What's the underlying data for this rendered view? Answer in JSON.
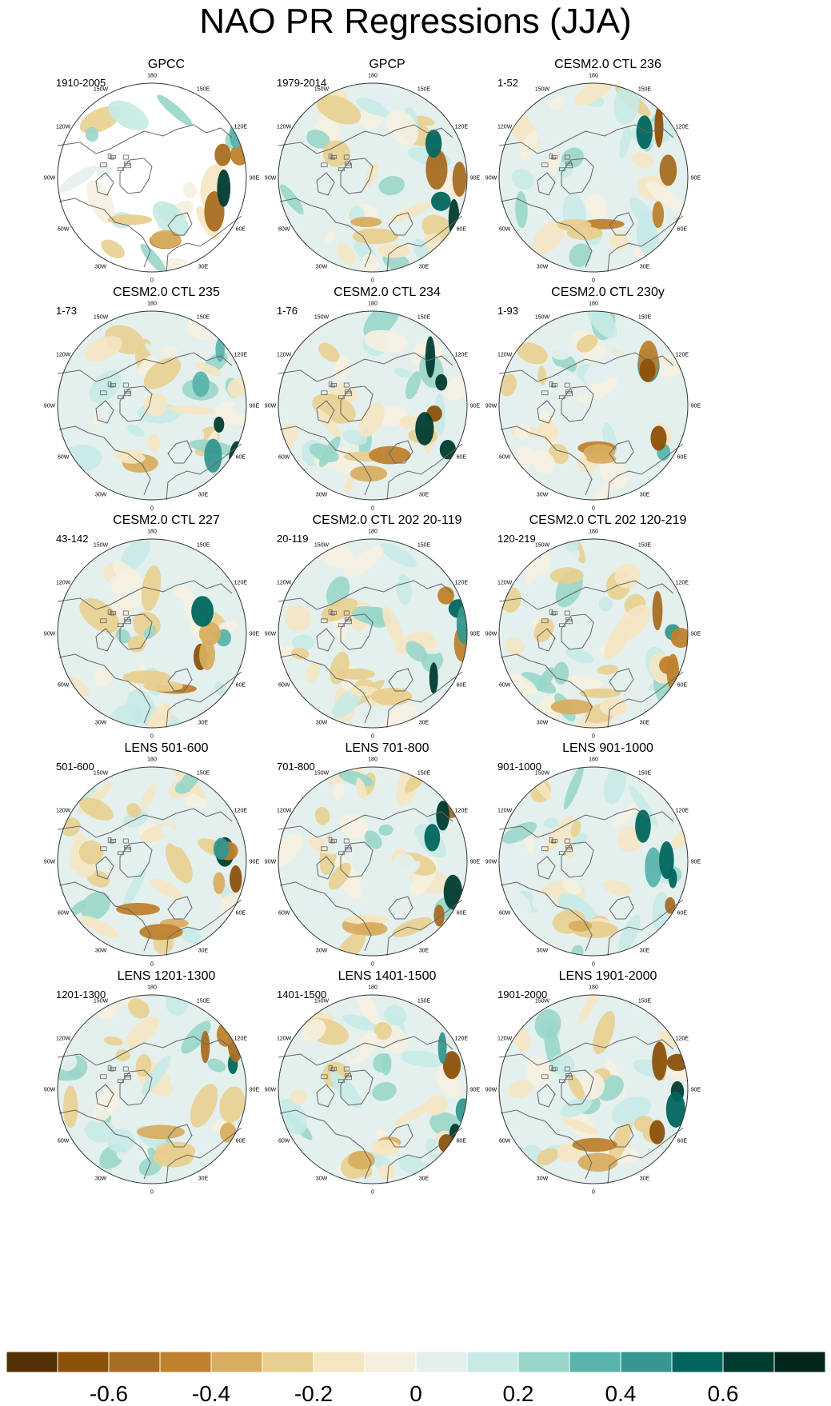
{
  "chart_data": {
    "type": "map",
    "title": "NAO PR Regressions (JJA)",
    "projection": "north-polar-stereographic",
    "lon_labels": [
      "180",
      "150E",
      "120E",
      "90E",
      "60E",
      "30E",
      "0",
      "30W",
      "60W",
      "90W",
      "120W",
      "150W"
    ],
    "panels": [
      {
        "title": "GPCC",
        "period": "1910-2005",
        "land_only": true
      },
      {
        "title": "GPCP",
        "period": "1979-2014"
      },
      {
        "title": "CESM2.0 CTL 236",
        "period": "1-52"
      },
      {
        "title": "CESM2.0 CTL 235",
        "period": "1-73"
      },
      {
        "title": "CESM2.0 CTL 234",
        "period": "1-76"
      },
      {
        "title": "CESM2.0 CTL 230y",
        "period": "1-93"
      },
      {
        "title": "CESM2.0 CTL 227",
        "period": "43-142"
      },
      {
        "title": "CESM2.0 CTL 202 20-119",
        "period": "20-119"
      },
      {
        "title": "CESM2.0 CTL 202 120-219",
        "period": "120-219"
      },
      {
        "title": "LENS 501-600",
        "period": "501-600"
      },
      {
        "title": "LENS 701-800",
        "period": "701-800"
      },
      {
        "title": "LENS 901-1000",
        "period": "901-1000"
      },
      {
        "title": "LENS 1201-1300",
        "period": "1201-1300"
      },
      {
        "title": "LENS 1401-1500",
        "period": "1401-1500"
      },
      {
        "title": "LENS 1901-2000",
        "period": "1901-2000"
      }
    ],
    "colorbar": {
      "levels": [
        -0.7,
        -0.6,
        -0.5,
        -0.4,
        -0.3,
        -0.2,
        -0.1,
        0,
        0.1,
        0.2,
        0.3,
        0.4,
        0.5,
        0.6,
        0.7
      ],
      "colors": [
        "#543005",
        "#8c510a",
        "#a86d22",
        "#bf812d",
        "#d8ad60",
        "#e8cf8f",
        "#f5e6c2",
        "#f5efe0",
        "#e3f0ee",
        "#c7eae5",
        "#99d6c9",
        "#5ab4ac",
        "#35978f",
        "#01665e",
        "#003c30",
        "#00261c"
      ],
      "tick_labels": [
        "-0.6",
        "-0.4",
        "-0.2",
        "0",
        "0.2",
        "0.4",
        "0.6"
      ],
      "tick_values": [
        -0.6,
        -0.4,
        -0.2,
        0,
        0.2,
        0.4,
        0.6
      ]
    }
  }
}
